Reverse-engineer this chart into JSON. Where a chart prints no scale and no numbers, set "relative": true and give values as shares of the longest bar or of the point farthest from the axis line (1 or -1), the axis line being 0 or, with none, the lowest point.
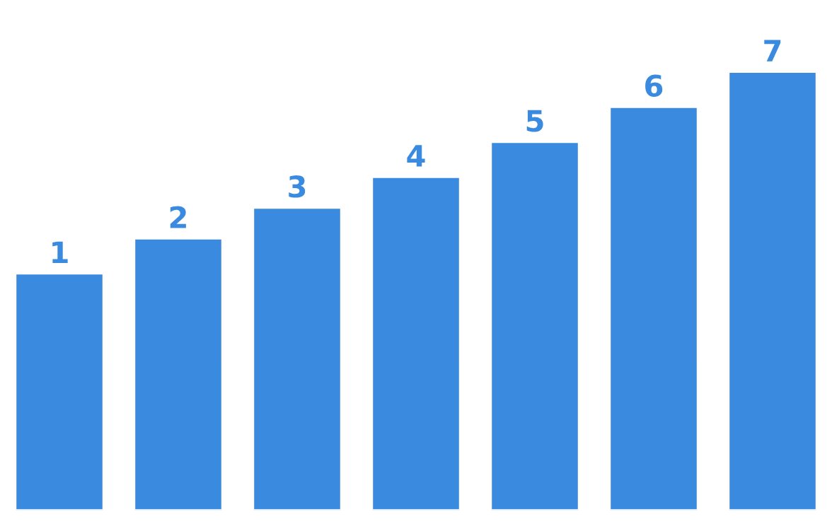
{
  "chart_data": {
    "type": "bar",
    "relative": true,
    "categories": [
      "1",
      "2",
      "3",
      "4",
      "5",
      "6",
      "7"
    ],
    "values": [
      0.54,
      0.62,
      0.69,
      0.76,
      0.84,
      0.92,
      1.0
    ],
    "color": "#3a8be0"
  }
}
